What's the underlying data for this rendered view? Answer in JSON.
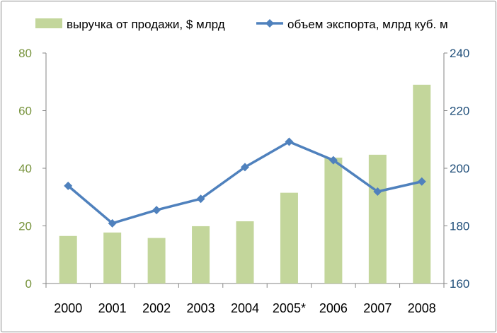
{
  "chart_data": {
    "type": "bar+line",
    "categories": [
      "2000",
      "2001",
      "2002",
      "2003",
      "2004",
      "2005*",
      "2006",
      "2007",
      "2008"
    ],
    "series": [
      {
        "name": "выручка от продажи, $ млрд",
        "type": "bar",
        "axis": "left",
        "color": "#c3d69b",
        "values": [
          16.5,
          17.7,
          15.8,
          19.9,
          21.6,
          31.5,
          43.7,
          44.7,
          69.0
        ]
      },
      {
        "name": "объем экспорта, млрд куб. м",
        "type": "line",
        "axis": "right",
        "color": "#4f81bd",
        "marker": "diamond",
        "values": [
          193.9,
          180.9,
          185.5,
          189.4,
          200.4,
          209.2,
          202.8,
          191.9,
          195.4
        ]
      }
    ],
    "y_left": {
      "ylim": [
        0,
        80
      ],
      "ticks": [
        "0",
        "20",
        "40",
        "60",
        "80"
      ],
      "color": "#77933c"
    },
    "y_right": {
      "ylim": [
        160,
        240
      ],
      "ticks": [
        "160",
        "180",
        "200",
        "220",
        "240"
      ],
      "color": "#1f4e79"
    },
    "legend_position": "top",
    "grid": false
  }
}
